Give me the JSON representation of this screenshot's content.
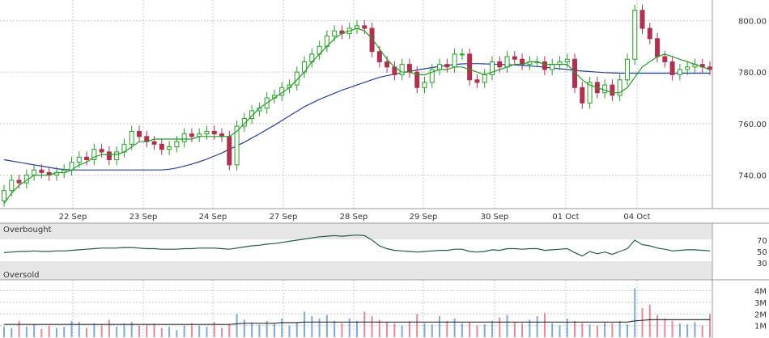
{
  "chart_data": {
    "type": "candlestick",
    "x_labels": [
      "22 Sep",
      "23 Sep",
      "24 Sep",
      "27 Sep",
      "28 Sep",
      "29 Sep",
      "30 Sep",
      "01 Oct",
      "04 Oct"
    ],
    "price": {
      "ylim": [
        727,
        808
      ],
      "yticks": [
        "740.00",
        "760.00",
        "780.00",
        "800.00"
      ],
      "up_color": "#ffffff",
      "down_color": "#b03050",
      "ma_short_color": "#22a022",
      "ma_long_color": "#2040a0",
      "close": [
        734,
        738,
        737,
        740,
        742,
        741,
        740,
        741,
        742,
        745,
        747,
        746,
        750,
        749,
        746,
        749,
        752,
        757,
        755,
        753,
        752,
        750,
        751,
        753,
        756,
        755,
        756,
        757,
        756,
        755,
        744,
        759,
        762,
        765,
        766,
        770,
        771,
        774,
        775,
        780,
        784,
        787,
        790,
        794,
        796,
        795,
        797,
        798,
        797,
        788,
        784,
        782,
        779,
        783,
        780,
        774,
        776,
        781,
        783,
        782,
        787,
        787,
        777,
        776,
        779,
        784,
        782,
        786,
        785,
        783,
        784,
        784,
        781,
        783,
        784,
        785,
        774,
        768,
        776,
        772,
        775,
        771,
        777,
        785,
        804,
        797,
        793,
        786,
        784,
        779,
        781,
        782,
        783,
        782,
        781
      ],
      "ma_short": [
        729,
        733,
        736,
        738,
        740,
        740,
        740,
        741,
        741,
        742,
        744,
        745,
        747,
        748,
        748,
        748,
        749,
        751,
        753,
        753,
        754,
        754,
        754,
        754,
        754,
        754,
        755,
        755,
        755,
        755,
        755,
        757,
        760,
        763,
        766,
        768,
        770,
        772,
        774,
        777,
        780,
        784,
        787,
        790,
        793,
        795,
        796,
        797,
        796,
        793,
        789,
        785,
        782,
        780,
        780,
        779,
        779,
        780,
        781,
        781,
        782,
        782,
        781,
        780,
        779,
        780,
        781,
        782,
        783,
        783,
        784,
        784,
        783,
        783,
        783,
        783,
        780,
        777,
        775,
        774,
        773,
        772,
        772,
        774,
        778,
        782,
        784,
        786,
        787,
        786,
        785,
        784,
        783,
        782,
        781
      ],
      "ma_long": [
        746,
        745.5,
        745,
        744.5,
        744,
        743.5,
        743,
        742.5,
        742.2,
        742,
        742,
        742,
        742,
        742,
        742,
        742,
        742,
        742,
        742,
        742,
        742,
        742,
        742.3,
        742.8,
        743.5,
        744.3,
        745.2,
        746.2,
        747.4,
        748.6,
        750,
        751.4,
        752.8,
        754.4,
        756,
        757.7,
        759.4,
        761.2,
        763,
        764.8,
        766.6,
        768,
        769.4,
        770.6,
        771.8,
        773,
        774,
        775,
        776,
        777,
        778,
        778.6,
        779.2,
        779.8,
        780.3,
        780.8,
        781.3,
        781.8,
        782.2,
        782.6,
        782.9,
        783.2,
        783.3,
        783.3,
        783.2,
        783.1,
        783,
        782.9,
        782.8,
        782.6,
        782.4,
        782.2,
        781.9,
        781.6,
        781.3,
        781,
        780.7,
        780.4,
        780.2,
        780,
        779.8,
        779.7,
        779.6,
        779.6,
        779.6,
        779.6,
        779.6,
        779.6,
        779.6,
        779.6,
        779.6,
        779.6,
        779.6,
        779.6,
        779.6
      ]
    },
    "oscillator": {
      "labels": [
        "Overbought",
        "Oversold"
      ],
      "yticks": [
        "70",
        "50",
        "30"
      ],
      "ylim": [
        0,
        100
      ],
      "values": [
        48,
        49,
        50,
        50,
        51,
        50,
        50,
        51,
        51,
        52,
        53,
        54,
        55,
        56,
        56,
        56,
        57,
        57,
        56,
        55,
        55,
        54,
        54,
        54,
        55,
        55,
        56,
        56,
        56,
        55,
        54,
        56,
        58,
        60,
        61,
        63,
        64,
        66,
        68,
        70,
        72,
        74,
        76,
        77,
        78,
        77,
        78,
        79,
        78,
        70,
        60,
        55,
        52,
        51,
        50,
        49,
        50,
        51,
        52,
        52,
        54,
        54,
        50,
        49,
        50,
        53,
        52,
        55,
        55,
        54,
        55,
        55,
        52,
        53,
        54,
        55,
        48,
        42,
        50,
        46,
        49,
        45,
        50,
        55,
        70,
        62,
        60,
        56,
        54,
        51,
        52,
        53,
        53,
        52,
        51
      ]
    },
    "volume": {
      "yticks": [
        "4M",
        "3M",
        "2M",
        "1M"
      ],
      "ylim": [
        0,
        4.8
      ],
      "avg_color": "#333333",
      "values": [
        0.9,
        0.8,
        1.4,
        0.9,
        1.1,
        0.7,
        1.0,
        0.8,
        0.9,
        1.4,
        1.3,
        0.8,
        1.2,
        1.1,
        1.5,
        0.9,
        1.2,
        1.3,
        1.0,
        1.1,
        1.2,
        0.8,
        0.9,
        0.6,
        1.0,
        1.2,
        1.0,
        0.9,
        1.3,
        0.8,
        1.1,
        2.0,
        1.5,
        1.3,
        1.1,
        1.4,
        1.2,
        1.6,
        1.0,
        1.3,
        2.2,
        1.8,
        1.6,
        1.9,
        1.4,
        1.2,
        1.6,
        1.4,
        2.2,
        1.8,
        1.5,
        1.3,
        1.2,
        1.0,
        1.4,
        2.0,
        1.2,
        1.1,
        1.8,
        1.4,
        1.6,
        1.2,
        1.3,
        1.0,
        1.1,
        1.4,
        1.7,
        1.9,
        1.3,
        1.2,
        1.5,
        1.8,
        2.1,
        1.2,
        1.0,
        1.6,
        1.4,
        1.2,
        1.1,
        1.0,
        1.3,
        1.2,
        1.4,
        1.1,
        4.2,
        2.5,
        2.8,
        1.9,
        1.6,
        1.4,
        1.2,
        1.1,
        1.3,
        1.0,
        2.0
      ],
      "avg": [
        1.1,
        1.1,
        1.1,
        1.1,
        1.1,
        1.1,
        1.1,
        1.1,
        1.1,
        1.1,
        1.1,
        1.1,
        1.1,
        1.1,
        1.1,
        1.1,
        1.1,
        1.1,
        1.1,
        1.1,
        1.1,
        1.1,
        1.1,
        1.1,
        1.1,
        1.1,
        1.1,
        1.1,
        1.1,
        1.1,
        1.1,
        1.15,
        1.2,
        1.2,
        1.2,
        1.2,
        1.2,
        1.25,
        1.25,
        1.25,
        1.3,
        1.3,
        1.3,
        1.3,
        1.3,
        1.3,
        1.3,
        1.3,
        1.3,
        1.3,
        1.3,
        1.3,
        1.3,
        1.3,
        1.3,
        1.3,
        1.3,
        1.3,
        1.3,
        1.3,
        1.3,
        1.3,
        1.3,
        1.3,
        1.3,
        1.3,
        1.3,
        1.3,
        1.3,
        1.3,
        1.3,
        1.3,
        1.3,
        1.3,
        1.3,
        1.3,
        1.3,
        1.3,
        1.3,
        1.3,
        1.3,
        1.3,
        1.3,
        1.3,
        1.4,
        1.45,
        1.5,
        1.5,
        1.5,
        1.5,
        1.5,
        1.5,
        1.5,
        1.5,
        1.5
      ]
    }
  }
}
